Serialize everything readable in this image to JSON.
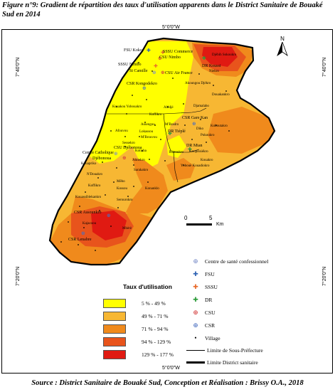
{
  "caption": "Figure n°9: Gradient de répartition des taux d'utilisation apparents dans le District Sanitaire de Bouaké Sud en 2014",
  "source": "Source : District Sanitaire de Bouaké Sud, Conception et Réalisation : Brissy O.A., 2018",
  "coords": {
    "top": "5°0'0\"W",
    "bottom": "5°0'0\"W",
    "left_top": "7°40'0\"N",
    "right_top": "7°40'0\"N",
    "left_bottom": "7°20'0\"N",
    "right_bottom": "7°20'0\"N"
  },
  "north": "N",
  "scale": {
    "zero": "0",
    "five": "5",
    "unit": "Km"
  },
  "legend": {
    "title": "Taux d'utilisation",
    "classes": [
      {
        "label": "5 % - 49 %",
        "color": "#ffff00"
      },
      {
        "label": "49 % - 71 %",
        "color": "#f7b733"
      },
      {
        "label": "71 % - 94 %",
        "color": "#f08a1c"
      },
      {
        "label": "94 % - 129 %",
        "color": "#e8541c"
      },
      {
        "label": "129 % - 177 %",
        "color": "#e01a12"
      }
    ],
    "symbols": [
      {
        "icon": "⊕",
        "label": "Centre de santé confessionnel",
        "color": "#7d8fc9"
      },
      {
        "icon": "✚",
        "label": "FSU",
        "color": "#2f63b3"
      },
      {
        "icon": "✚",
        "label": "SSSU",
        "color": "#e86b2c"
      },
      {
        "icon": "✚",
        "label": "DR",
        "color": "#2d9c3a"
      },
      {
        "icon": "⊕",
        "label": "CSU",
        "color": "#d33a3a"
      },
      {
        "icon": "⊕",
        "label": "CSR",
        "color": "#4a6fc0"
      },
      {
        "icon": "•",
        "label": "Village",
        "color": "#000000"
      }
    ],
    "lines": [
      {
        "label": "Limite de Sous-Préfecture"
      },
      {
        "label": "Limite District sanitaire"
      }
    ]
  },
  "places": [
    {
      "name": "FSU Koko"
    },
    {
      "name": "SSSU Commerce"
    },
    {
      "name": "CSU Nimbo"
    },
    {
      "name": "Djébih Sokoukro"
    },
    {
      "name": "DR Koussi"
    },
    {
      "name": "Niekro"
    },
    {
      "name": "SSSU Nimbo"
    },
    {
      "name": "St Camille"
    },
    {
      "name": "CSU Air France"
    },
    {
      "name": "CSR Kongodekro"
    },
    {
      "name": "Akoungou Djékro"
    },
    {
      "name": "Douakankro"
    },
    {
      "name": "Kouakou Yobouakro"
    },
    {
      "name": "Ahidjé"
    },
    {
      "name": "Djamalabo"
    },
    {
      "name": "Koffikro"
    },
    {
      "name": "CSR Gare Kan"
    },
    {
      "name": "Assengou"
    },
    {
      "name": "M'Bradro"
    },
    {
      "name": "Diko"
    },
    {
      "name": "Kokoutakro"
    },
    {
      "name": "Afouvou"
    },
    {
      "name": "Lokassou"
    },
    {
      "name": "M'Brouvou"
    },
    {
      "name": "DR Tiéplé"
    },
    {
      "name": "Pokoukro"
    },
    {
      "name": "Sessekro"
    },
    {
      "name": "DR Mian"
    },
    {
      "name": "Koupissiékro"
    },
    {
      "name": "Centre Catholique"
    },
    {
      "name": "CSU Djébonoua"
    },
    {
      "name": "Djébonoua"
    },
    {
      "name": "Kotiaba"
    },
    {
      "name": "Kanoukro"
    },
    {
      "name": "Kouakro"
    },
    {
      "name": "Kouapriko"
    },
    {
      "name": "Ahitekro"
    },
    {
      "name": "Yobouë Kouadiokro"
    },
    {
      "name": "Sarakakro"
    },
    {
      "name": "N'Douakro"
    },
    {
      "name": "Mêbo"
    },
    {
      "name": "Kossou"
    },
    {
      "name": "Konanklo"
    },
    {
      "name": "Koffikro"
    },
    {
      "name": "Kouassiblekankro"
    },
    {
      "name": "Serourokro"
    },
    {
      "name": "CSR Assounkro"
    },
    {
      "name": "Kajacoou"
    },
    {
      "name": "Mbèrè"
    },
    {
      "name": "CSR Lenabre"
    }
  ]
}
